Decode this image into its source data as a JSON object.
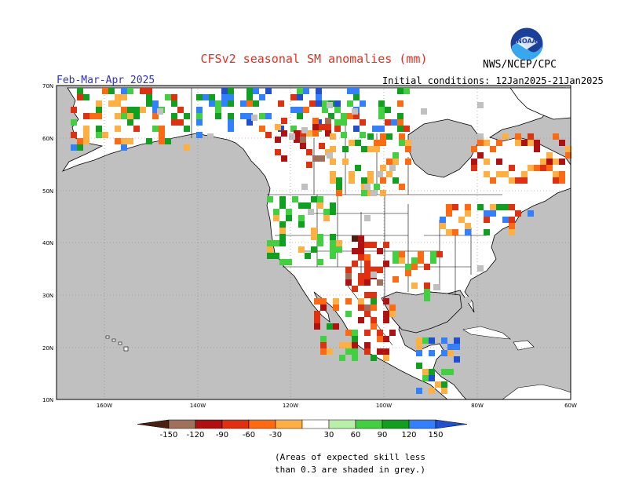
{
  "map": {
    "title": "CFSv2 seasonal SM anomalies (mm)",
    "agency": "NWS/NCEP/CPC",
    "logo_text": "NOAA",
    "period": "Feb-Mar-Apr 2025",
    "initial_conditions": "Initial conditions: 12Jan2025-21Jan2025",
    "lat_labels": [
      "70N",
      "60N",
      "50N",
      "40N",
      "30N",
      "20N",
      "10N"
    ],
    "lon_labels": [
      "160W",
      "140W",
      "120W",
      "100W",
      "80W",
      "60W"
    ],
    "skill_note_line1": "(Areas of expected skill less",
    "skill_note_line2": "than 0.3 are shaded in grey.)"
  },
  "colorbar": {
    "levels": [
      "-150",
      "-120",
      "-90",
      "-60",
      "-30",
      "30",
      "60",
      "90",
      "120",
      "150"
    ],
    "colors": [
      "#4a2010",
      "#a0705a",
      "#b01010",
      "#e03010",
      "#ff6a10",
      "#ffb040",
      "#ffffff",
      "#b8f0a8",
      "#40d040",
      "#10a020",
      "#3080ff",
      "#2050d0"
    ]
  },
  "colors": {
    "land_skill": "#ffffff",
    "low_skill": "#c0c0c0",
    "ocean": "#c0c0c0"
  }
}
